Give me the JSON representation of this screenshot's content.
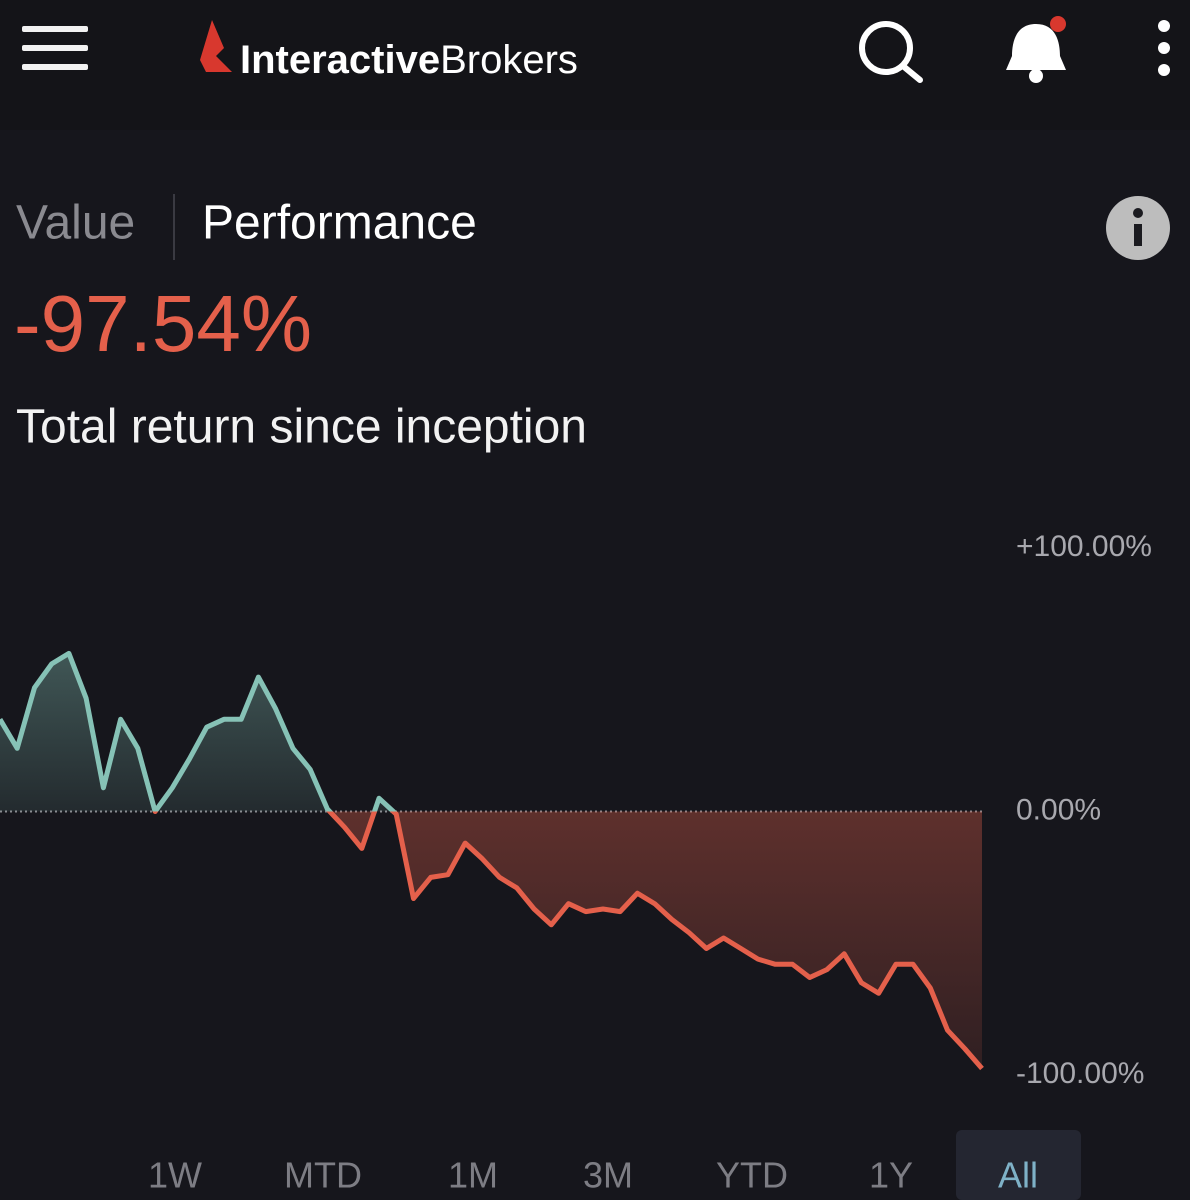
{
  "header": {
    "brand_bold": "Interactive",
    "brand_light": "Brokers"
  },
  "tabs": {
    "items": [
      "Value",
      "Performance"
    ],
    "selected": "Performance"
  },
  "headline": {
    "value": "-97.54%",
    "caption": "Total return since inception"
  },
  "chart_data": {
    "type": "line",
    "series": [
      {
        "values": [
          35,
          24,
          47,
          56,
          60,
          43,
          9,
          35,
          24,
          0,
          9,
          20,
          32,
          35,
          35,
          51,
          39,
          24,
          16,
          1,
          -6,
          -14,
          5,
          -1,
          -33,
          -25,
          -24,
          -12,
          -18,
          -25,
          -29,
          -37,
          -43,
          -35,
          -38,
          -37,
          -38,
          -31,
          -35,
          -41,
          -46,
          -52,
          -48,
          -52,
          -56,
          -58,
          -58,
          -63,
          -60,
          -54,
          -65,
          -69,
          -58,
          -58,
          -67,
          -83,
          -90,
          -97.54
        ]
      }
    ],
    "ylim": [
      -100,
      100
    ],
    "yticks": [
      {
        "value": 100,
        "label": "+100.00%"
      },
      {
        "value": 0,
        "label": "0.00%"
      },
      {
        "value": -100,
        "label": "-100.00%"
      }
    ],
    "colors": {
      "positive": "#86c2b6",
      "negative": "#e4604b"
    }
  },
  "ranges": {
    "items": [
      "1W",
      "MTD",
      "1M",
      "3M",
      "YTD",
      "1Y",
      "All"
    ],
    "selected": "All"
  }
}
